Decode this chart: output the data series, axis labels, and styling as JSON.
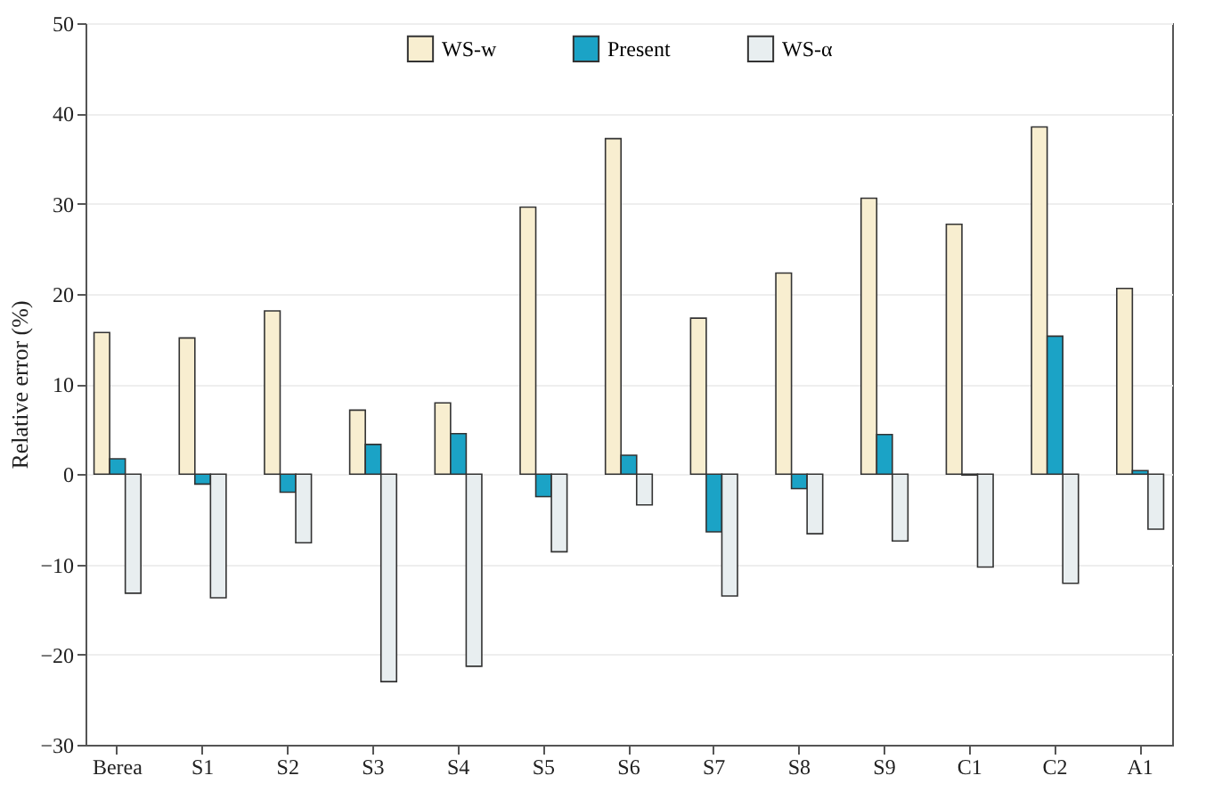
{
  "chart_data": {
    "type": "bar",
    "ylabel": "Relative error (%)",
    "categories": [
      "Berea",
      "S1",
      "S2",
      "S3",
      "S4",
      "S5",
      "S6",
      "S7",
      "S8",
      "S9",
      "C1",
      "C2",
      "A1"
    ],
    "series": [
      {
        "name": "WS-w",
        "color": "#f8eed0",
        "values": [
          15.7,
          15.1,
          18.1,
          7.1,
          7.9,
          29.6,
          37.2,
          17.3,
          22.3,
          30.6,
          27.7,
          38.5,
          20.6
        ]
      },
      {
        "name": "Present",
        "color": "#1ba3c6",
        "values": [
          1.7,
          -1.1,
          -2.0,
          3.3,
          4.5,
          -2.5,
          2.1,
          -6.4,
          -1.6,
          4.4,
          -0.1,
          15.3,
          0.4
        ]
      },
      {
        "name": "WS-α",
        "color": "#e8eef0",
        "values": [
          -13.2,
          -13.7,
          -7.6,
          -23.0,
          -21.3,
          -8.6,
          -3.4,
          -13.5,
          -6.6,
          -7.4,
          -10.3,
          -12.1,
          -6.1
        ]
      }
    ],
    "ylim": [
      -30,
      50
    ],
    "yticks": [
      -30,
      -20,
      -10,
      0,
      10,
      20,
      30,
      40,
      50
    ],
    "grid": "y",
    "legend": "top"
  }
}
